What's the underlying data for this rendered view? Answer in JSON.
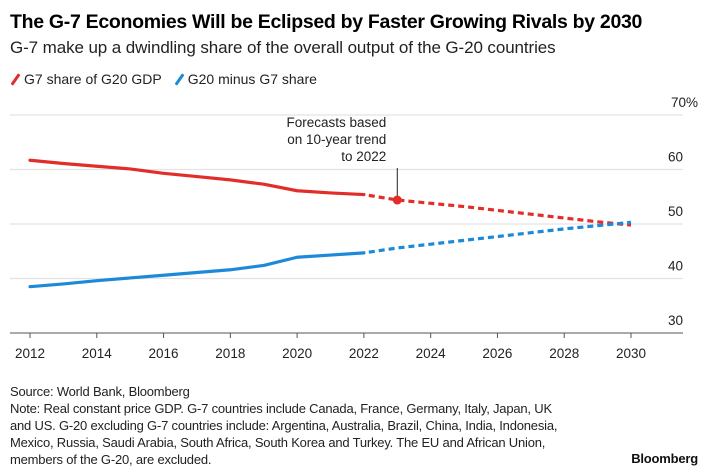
{
  "header": {
    "title": "The G-7 Economies Will be Eclipsed by Faster Growing Rivals by 2030",
    "subtitle": "G-7 make up a dwindling share of the overall output of the G-20 countries"
  },
  "footer": {
    "source": "Source: World Bank, Bloomberg",
    "note": "Note: Real constant price GDP. G-7 countries include Canada, France, Germany, Italy, Japan, UK and US. G-20 excluding G-7 countries include: Argentina, Australia, Brazil, China, India, Indonesia, Mexico, Russia, Saudi Arabia, South Africa, South Korea and Turkey. The EU and African Union, members of the G-20, are excluded.",
    "brand": "Bloomberg"
  },
  "chart_data": {
    "type": "line",
    "title": "The G-7 Economies Will be Eclipsed by Faster Growing Rivals by 2030",
    "subtitle": "G-7 make up a dwindling share of the overall output of the G-20 countries",
    "xlabel": "",
    "ylabel": "",
    "xlim": [
      2011.6,
      2031.6
    ],
    "ylim": [
      30,
      70
    ],
    "x_ticks": [
      2012,
      2014,
      2016,
      2018,
      2020,
      2022,
      2024,
      2026,
      2028,
      2030
    ],
    "x_tick_labels": [
      "2012",
      "2014",
      "2016",
      "2018",
      "2020",
      "2022",
      "2024",
      "2026",
      "2028",
      "2030"
    ],
    "y_ticks": [
      30,
      40,
      50,
      60,
      70
    ],
    "y_tick_labels": [
      "30",
      "40",
      "50",
      "60",
      "70%"
    ],
    "grid": true,
    "legend_position": "top-left",
    "series": [
      {
        "name": "G7 share of G20 GDP",
        "color": "#e12e2a",
        "actual": {
          "x": [
            2012,
            2013,
            2014,
            2015,
            2016,
            2017,
            2018,
            2019,
            2020,
            2021,
            2022
          ],
          "values": [
            61.7,
            61.1,
            60.6,
            60.1,
            59.3,
            58.7,
            58.1,
            57.3,
            56.1,
            55.7,
            55.4
          ]
        },
        "forecast": {
          "x": [
            2022,
            2023,
            2024,
            2025,
            2026,
            2027,
            2028,
            2029,
            2030
          ],
          "values": [
            55.4,
            54.4,
            53.8,
            53.2,
            52.5,
            51.8,
            51.1,
            50.4,
            49.8
          ]
        }
      },
      {
        "name": "G20 minus G7 share",
        "color": "#1c8ad8",
        "actual": {
          "x": [
            2012,
            2013,
            2014,
            2015,
            2016,
            2017,
            2018,
            2019,
            2020,
            2021,
            2022
          ],
          "values": [
            38.5,
            39.0,
            39.6,
            40.1,
            40.6,
            41.1,
            41.6,
            42.4,
            43.9,
            44.3,
            44.7
          ]
        },
        "forecast": {
          "x": [
            2022,
            2023,
            2024,
            2025,
            2026,
            2027,
            2028,
            2029,
            2030
          ],
          "values": [
            44.7,
            45.6,
            46.3,
            47.0,
            47.7,
            48.4,
            49.1,
            49.7,
            50.3
          ]
        }
      }
    ],
    "annotations": [
      {
        "text_lines": [
          "Forecasts based",
          "on 10-year trend",
          "to 2022"
        ],
        "x": 2023,
        "y": 54.4,
        "marker": "dot",
        "series": "G7 share of G20 GDP"
      }
    ]
  }
}
